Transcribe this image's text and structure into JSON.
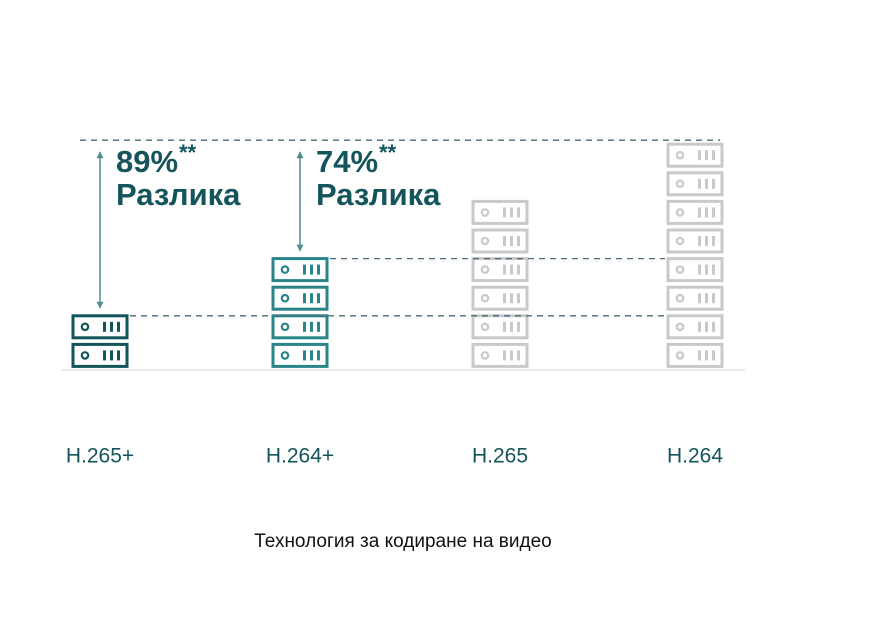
{
  "chart_data": {
    "type": "pictograph",
    "categories": [
      "H.265+",
      "H.264+",
      "H.265",
      "H.264"
    ],
    "values": [
      2,
      4,
      6,
      8
    ],
    "colors": [
      "#14555c",
      "#2a8589",
      "#c9c9c9",
      "#c9c9c9"
    ],
    "xlabel": "Технология за кодиране на видео",
    "annotations": [
      {
        "text": "89%",
        "mark": "**",
        "label": "Разлика"
      },
      {
        "text": "74%",
        "mark": "**",
        "label": "Разлика"
      }
    ]
  }
}
